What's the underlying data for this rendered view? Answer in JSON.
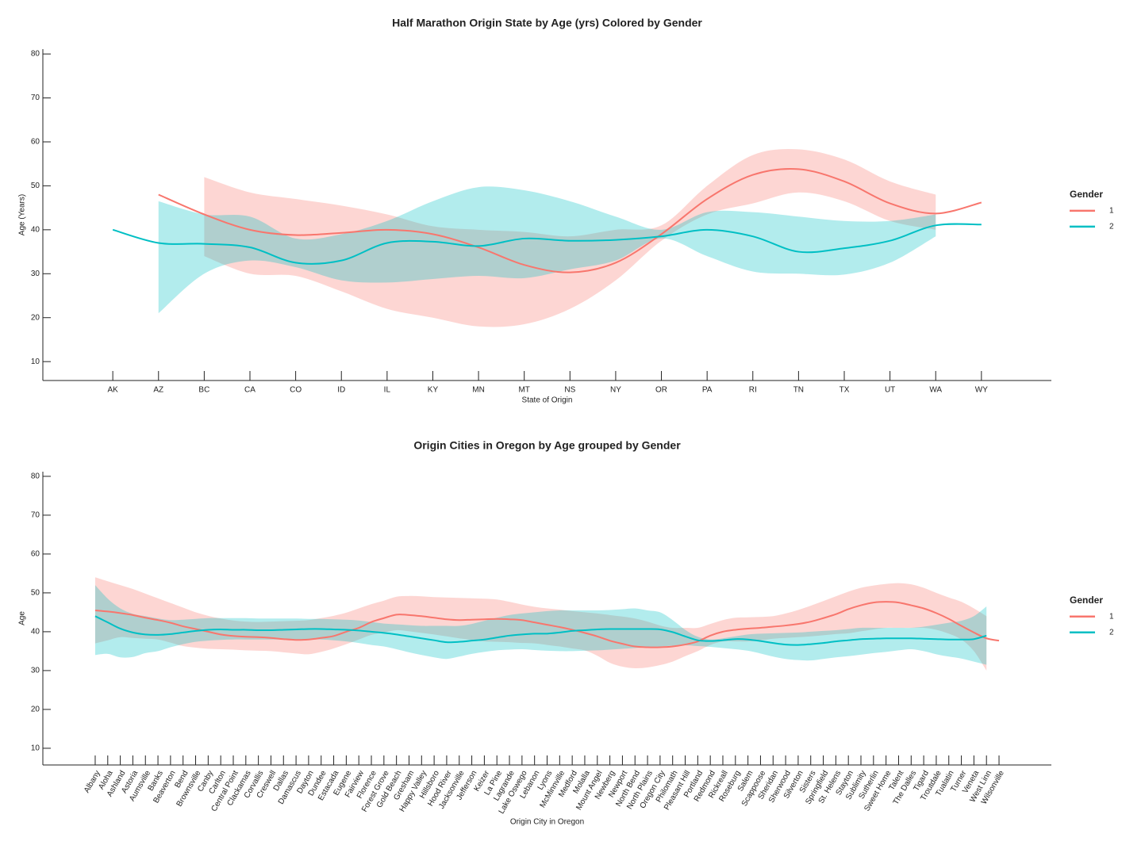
{
  "chart_data": [
    {
      "type": "line",
      "title": "Half Marathon Origin State by Age (yrs) Colored by Gender",
      "x_label": "State of Origin",
      "y_label": "Age (Years)",
      "categories": [
        "AK",
        "AZ",
        "BC",
        "CA",
        "CO",
        "ID",
        "IL",
        "KY",
        "MN",
        "MT",
        "NS",
        "NY",
        "OR",
        "PA",
        "RI",
        "TN",
        "TX",
        "UT",
        "WA",
        "WY"
      ],
      "legend_title": "Gender",
      "legend": "right",
      "series": [
        {
          "name": "1",
          "color": "#F8766D",
          "values": [
            null,
            48,
            43.5,
            40,
            38.8,
            39.3,
            40,
            39,
            36,
            32,
            30.3,
            32.5,
            39,
            47,
            52.5,
            53.8,
            51,
            46,
            43.7,
            46.2
          ],
          "upper": [
            null,
            null,
            52,
            48.5,
            47,
            45.5,
            43.5,
            40.8,
            40,
            39.5,
            38.5,
            40,
            41,
            50,
            57,
            58.3,
            56,
            51,
            48,
            null
          ],
          "lower": [
            null,
            null,
            34,
            30,
            29.5,
            26,
            22,
            20,
            18,
            18.5,
            22,
            28.5,
            37.5,
            43.5,
            46,
            48.5,
            46.5,
            42,
            40,
            null
          ]
        },
        {
          "name": "2",
          "color": "#00BFC4",
          "values": [
            40,
            37,
            36.8,
            36,
            32.5,
            33,
            37,
            37.3,
            36.3,
            38,
            37.5,
            37.7,
            38.5,
            40,
            38.5,
            35,
            35.8,
            37.5,
            41,
            41.2
          ],
          "upper": [
            null,
            46.5,
            43.5,
            43,
            38,
            39,
            42,
            46.5,
            49.7,
            49,
            46.5,
            43,
            40,
            44,
            44,
            43,
            42,
            42,
            43.5,
            null
          ],
          "lower": [
            null,
            21,
            30,
            33,
            31.5,
            28.5,
            28,
            28.8,
            29.5,
            29,
            31,
            33,
            38,
            34,
            30.5,
            30,
            29.8,
            32.5,
            38.5,
            null
          ]
        }
      ],
      "ylim": [
        5.7,
        81.1
      ],
      "yticks": [
        10,
        20,
        30,
        40,
        50,
        60,
        70,
        80
      ]
    },
    {
      "type": "line",
      "title": "Origin Cities in Oregon by Age grouped by Gender",
      "x_label": "Origin City in Oregon",
      "y_label": "Age",
      "categories": [
        "Albany",
        "Aloha",
        "Ashland",
        "Astoria",
        "Aumsville",
        "Banks",
        "Beaverton",
        "Bend",
        "Brownsville",
        "Canby",
        "Carlton",
        "Central Point",
        "Clackamas",
        "Corvallis",
        "Creswell",
        "Dallas",
        "Damascus",
        "Dayton",
        "Dundee",
        "Estacada",
        "Eugene",
        "Fairview",
        "Florence",
        "Forest Grove",
        "Gold Beach",
        "Gresham",
        "Happy Valley",
        "Hillsboro",
        "Hood River",
        "Jacksonville",
        "Jefferson",
        "Keizer",
        "La Pine",
        "Lagrande",
        "Lake Oswego",
        "Lebanon",
        "Lyons",
        "McMinnville",
        "Medford",
        "Molalla",
        "Mount Angel",
        "Newberg",
        "Newport",
        "North Bend",
        "North Plains",
        "Oregon City",
        "Philomath",
        "Pleasant Hill",
        "Portland",
        "Redmond",
        "Rickreall",
        "Roseburg",
        "Salem",
        "Scappoose",
        "Sheridan",
        "Sherwood",
        "Silverton",
        "Sisters",
        "Springfield",
        "St. Helens",
        "Stayton",
        "Sublimity",
        "Sutherlin",
        "Sweet Home",
        "Talent",
        "The Dalles",
        "Tigard",
        "Troutdale",
        "Tualatin",
        "Turner",
        "Veneta",
        "West Linn",
        "Wilsonville"
      ],
      "legend_title": "Gender",
      "legend": "right",
      "series": [
        {
          "name": "1",
          "color": "#F8766D",
          "values": [
            45.5,
            45.2,
            44.8,
            44.3,
            43.6,
            43,
            42.3,
            41.4,
            40.7,
            40,
            39.3,
            38.9,
            38.7,
            38.6,
            38.4,
            38.1,
            37.9,
            38,
            38.4,
            38.9,
            40,
            41,
            42.5,
            43.5,
            44.4,
            44.3,
            44,
            43.6,
            43.2,
            43,
            43.1,
            43.2,
            43.3,
            43.2,
            43,
            42.4,
            41.8,
            41.2,
            40.5,
            39.7,
            38.8,
            37.7,
            36.9,
            36.2,
            36,
            36,
            36.2,
            36.7,
            37.5,
            39,
            40,
            40.5,
            40.8,
            41,
            41.3,
            41.6,
            42,
            42.6,
            43.5,
            44.5,
            45.8,
            46.8,
            47.5,
            47.7,
            47.5,
            46.8,
            46,
            44.8,
            43.3,
            41.5,
            39.8,
            38.3,
            37.7
          ],
          "upper": [
            54,
            53,
            52,
            51,
            49.8,
            48.6,
            47.4,
            46.2,
            45,
            44.1,
            43.4,
            42.9,
            42.6,
            42.5,
            42.6,
            42.7,
            42.8,
            43,
            43.5,
            44.1,
            44.9,
            46,
            47.1,
            48,
            49,
            49.2,
            49.1,
            48.9,
            48.8,
            48.7,
            48.6,
            48.5,
            48.3,
            47.7,
            47,
            46.4,
            46,
            45.7,
            45.3,
            45,
            44.7,
            44.3,
            43.9,
            43.4,
            42.6,
            41.6,
            41,
            41,
            41,
            42,
            43,
            43.6,
            43.7,
            43.8,
            44,
            44.7,
            45.6,
            46.7,
            47.9,
            49.1,
            50.3,
            51.3,
            51.9,
            52.3,
            52.5,
            52.2,
            51.3,
            50,
            48.8,
            47.7,
            46,
            44,
            null
          ],
          "lower": [
            37,
            37.8,
            38.6,
            38.4,
            38.2,
            38,
            37.2,
            36.3,
            35.9,
            35.6,
            35.5,
            35.4,
            35.2,
            35.1,
            35,
            34.7,
            34.4,
            34.2,
            34.8,
            35.7,
            36.8,
            38,
            39.2,
            39.8,
            40.4,
            40.1,
            39.7,
            39.3,
            38.8,
            38.3,
            37.9,
            37.5,
            37.4,
            37.3,
            37.1,
            37,
            36.6,
            36.2,
            35.7,
            35.2,
            33.8,
            32,
            31,
            30.6,
            30.8,
            31.4,
            32.3,
            33.7,
            35,
            36.6,
            37.5,
            37.5,
            37.5,
            37.8,
            38.2,
            38.4,
            38.6,
            38.8,
            39.1,
            39.4,
            39.6,
            40.1,
            40.6,
            41,
            41,
            41,
            41,
            40.5,
            39.5,
            38,
            35,
            30,
            null
          ]
        },
        {
          "name": "2",
          "color": "#00BFC4",
          "values": [
            44,
            42.4,
            40.8,
            39.8,
            39.3,
            39.2,
            39.4,
            39.8,
            40.2,
            40.5,
            40.6,
            40.5,
            40.5,
            40.4,
            40.4,
            40.5,
            40.6,
            40.7,
            40.7,
            40.6,
            40.5,
            40.3,
            40,
            39.7,
            39.3,
            38.8,
            38.3,
            37.8,
            37.3,
            37.4,
            37.7,
            38,
            38.5,
            39,
            39.3,
            39.5,
            39.5,
            39.8,
            40.2,
            40.4,
            40.6,
            40.7,
            40.7,
            40.7,
            40.7,
            40.6,
            39.9,
            38.8,
            37.8,
            37.6,
            37.8,
            38.1,
            38,
            37.6,
            37.1,
            36.7,
            36.6,
            36.8,
            37.1,
            37.5,
            37.8,
            38.1,
            38.2,
            38.3,
            38.3,
            38.3,
            38.2,
            38.1,
            38,
            38,
            38.1,
            39,
            null
          ],
          "upper": [
            52,
            48.5,
            46,
            44.6,
            44,
            43.4,
            43,
            43.1,
            43.3,
            43.5,
            43.5,
            43.5,
            43.5,
            43.4,
            43.4,
            43.4,
            43.4,
            43.3,
            43.3,
            43.2,
            43.1,
            42.9,
            42.5,
            42.1,
            41.9,
            41.7,
            41.5,
            41.5,
            41.5,
            41.5,
            42,
            42.8,
            43.6,
            44.3,
            44.7,
            45,
            45.3,
            45.5,
            45.5,
            45.5,
            45.5,
            45.6,
            45.8,
            46,
            45.5,
            45,
            43,
            40.5,
            38.7,
            38,
            38.3,
            38.8,
            39.3,
            39.5,
            39.6,
            39.7,
            39.8,
            40,
            40.2,
            40.4,
            40.7,
            41,
            41,
            41,
            41,
            41,
            41.3,
            41.8,
            42.3,
            42.8,
            44,
            46.5,
            null
          ],
          "lower": [
            34,
            34.3,
            33.4,
            33.5,
            34.5,
            35,
            36,
            36.8,
            37.4,
            37.7,
            37.9,
            38,
            38,
            38,
            38,
            38,
            38,
            38,
            38,
            37.8,
            37.5,
            37.1,
            36.6,
            36.2,
            35.5,
            34.7,
            34,
            33.4,
            33,
            33.6,
            34.3,
            34.8,
            35.2,
            35.4,
            35.5,
            35.3,
            35.1,
            35,
            35,
            35.1,
            35.2,
            35.4,
            35.6,
            35.8,
            36,
            36.2,
            36.4,
            36.5,
            36.3,
            36.1,
            35.8,
            35.5,
            35.1,
            34.4,
            33.6,
            33,
            32.7,
            32.6,
            33,
            33.4,
            33.7,
            34.1,
            34.5,
            34.8,
            35.2,
            35.5,
            35,
            34.2,
            33.6,
            33.1,
            32.3,
            31.5,
            null
          ]
        }
      ],
      "ylim": [
        5.7,
        81.2
      ],
      "yticks": [
        10,
        20,
        30,
        40,
        50,
        60,
        70,
        80
      ]
    }
  ]
}
